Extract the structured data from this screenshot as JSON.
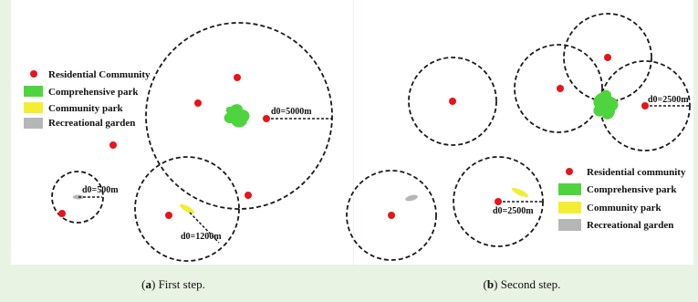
{
  "panel_a": {
    "legend": {
      "residential": "Residential Community",
      "comprehensive": "Comprehensive park",
      "community": "Community park",
      "recreational": "Recreational garden"
    },
    "radius_labels": {
      "small": "d0=500m",
      "medium": "d0=1200m",
      "large": "d0=5000m"
    },
    "caption": {
      "letter": "a",
      "text": "First step."
    }
  },
  "panel_b": {
    "legend": {
      "residential": "Residential community",
      "comprehensive": "Comprehensive park",
      "community": "Community park",
      "recreational": "Recreational garden"
    },
    "radius_labels": {
      "park": "d0=2500m",
      "community": "d0=2500m"
    },
    "caption": {
      "letter": "b",
      "text": "Second step."
    }
  },
  "colors": {
    "residential": "#e8141b",
    "comprehensive": "#4fd440",
    "community": "#f3ee34",
    "recreational": "#b5b7b7"
  }
}
